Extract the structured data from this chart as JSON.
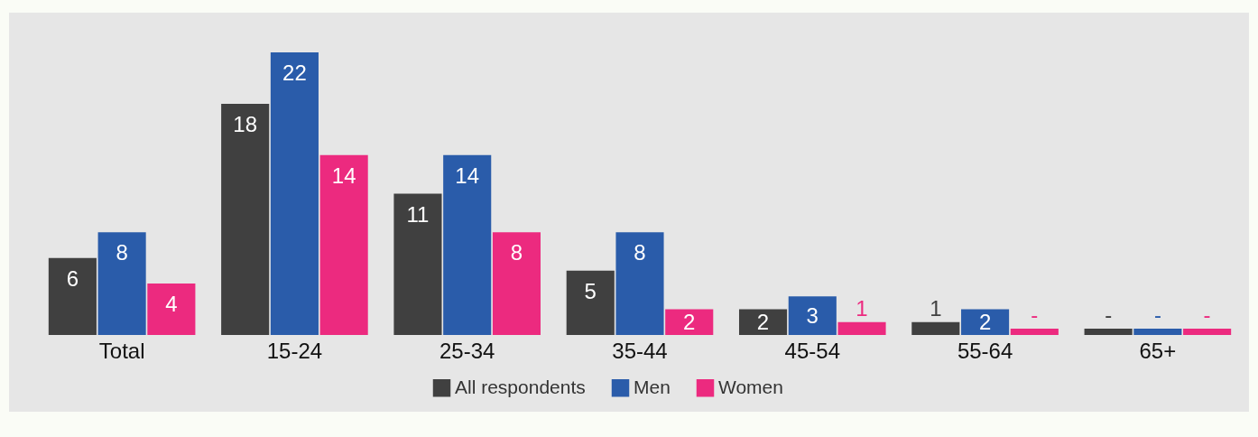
{
  "chart_data": {
    "type": "bar",
    "categories": [
      "Total",
      "15-24",
      "25-34",
      "35-44",
      "45-54",
      "55-64",
      "65+"
    ],
    "series": [
      {
        "name": "All respondents",
        "color": "#404040",
        "values": [
          6,
          18,
          11,
          5,
          2,
          1,
          0.5
        ],
        "value_labels": [
          "6",
          "18",
          "11",
          "5",
          "2",
          "1",
          "-"
        ]
      },
      {
        "name": "Men",
        "color": "#2a5caa",
        "values": [
          8,
          22,
          14,
          8,
          3,
          2,
          0.5
        ],
        "value_labels": [
          "8",
          "22",
          "14",
          "8",
          "3",
          "2",
          "-"
        ]
      },
      {
        "name": "Women",
        "color": "#ec2a7f",
        "values": [
          4,
          14,
          8,
          2,
          1,
          0.5,
          0.5
        ],
        "value_labels": [
          "4",
          "14",
          "8",
          "2",
          "1",
          "-",
          "-"
        ]
      }
    ],
    "legend": "bottom"
  }
}
